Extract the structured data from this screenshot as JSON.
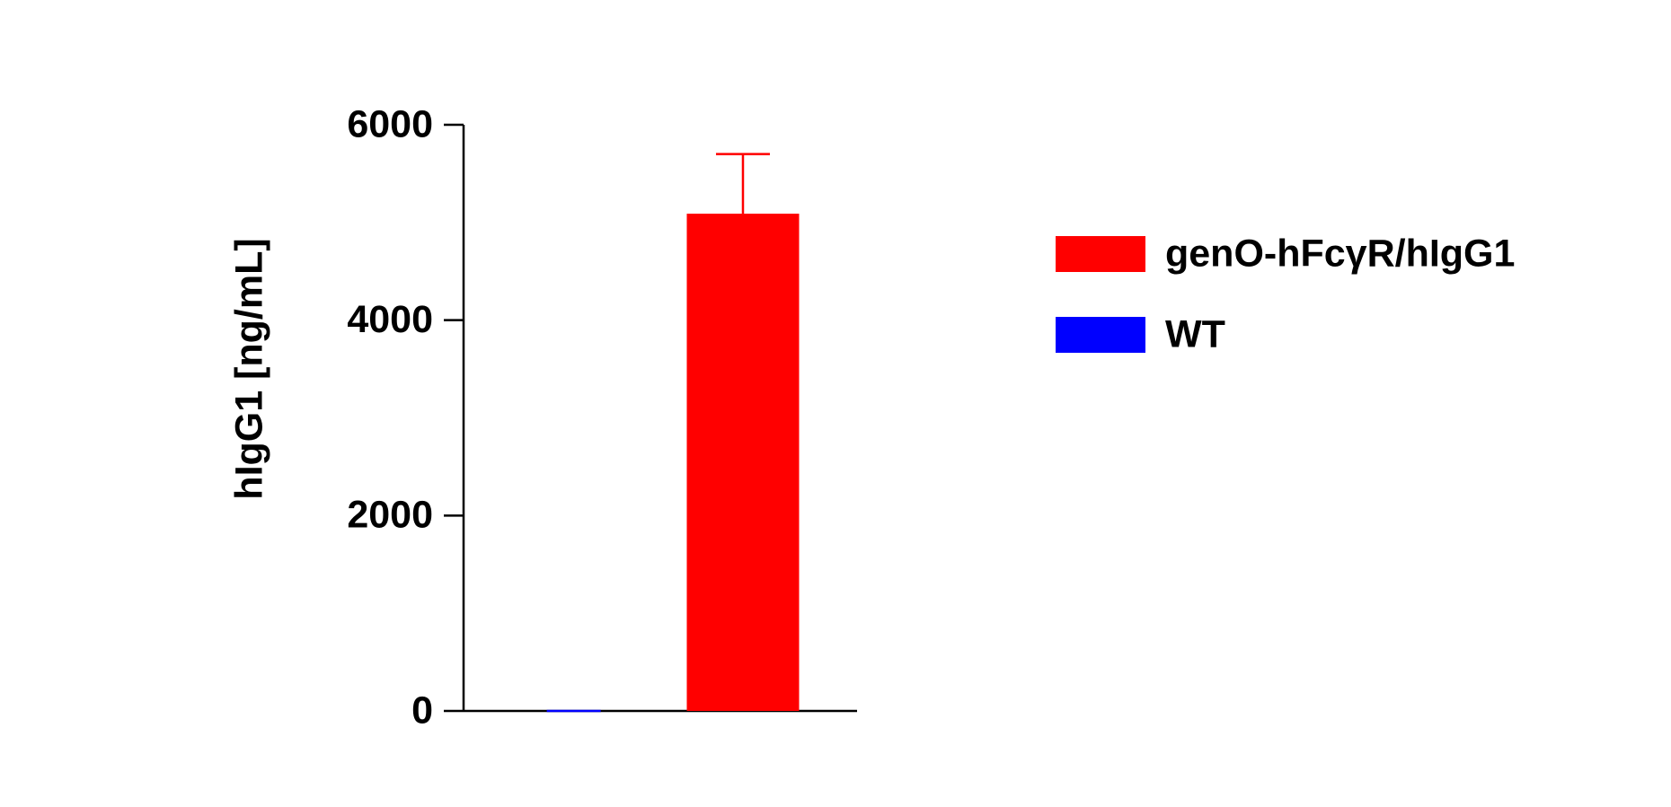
{
  "chart_data": {
    "type": "bar",
    "y_label": "hIgG1 [ng/mL]",
    "categories": [
      null
    ],
    "series": [
      {
        "name": "genO-hFcγR/hIgG1",
        "color": "#ff0000",
        "values": [
          5090
        ],
        "errors": [
          610
        ]
      },
      {
        "name": "WT",
        "color": "#0000ff",
        "values": [
          0
        ],
        "errors": [
          0
        ]
      }
    ],
    "ylim": [
      0,
      6000
    ],
    "yticks": [
      0,
      2000,
      4000,
      6000
    ],
    "grid": false
  }
}
